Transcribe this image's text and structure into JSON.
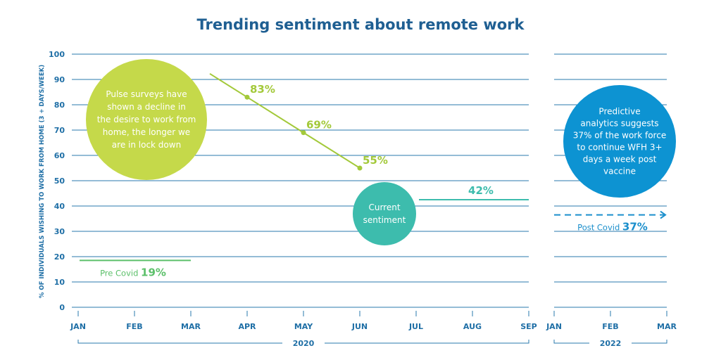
{
  "colors": {
    "axis": "#1f6fa6",
    "grid": "#2a79ad",
    "title": "#1f5f92",
    "lime": "#a3c93a",
    "lime_circle": "#c5d94a",
    "green": "#5cc06a",
    "teal": "#3dbcad",
    "blue": "#1b8fcc",
    "blue_circle": "#0d93d2"
  },
  "chart_data": {
    "type": "line",
    "title": "Trending sentiment about remote work",
    "ylabel": "% OF INDIVIDUALS WISHING TO WORK FROM HOME (3 + DAYS/WEEK)",
    "ylim": [
      0,
      100
    ],
    "yticks": [
      "0",
      "10",
      "20",
      "30",
      "40",
      "50",
      "60",
      "70",
      "80",
      "90",
      "100"
    ],
    "grid": true,
    "panels": [
      {
        "year": "2020",
        "months": [
          "JAN",
          "FEB",
          "MAR",
          "APR",
          "MAY",
          "JUN",
          "JUL",
          "AUG",
          "SEP"
        ]
      },
      {
        "year": "2022",
        "months": [
          "JAN",
          "FEB",
          "MAR"
        ]
      }
    ],
    "series": [
      {
        "points": [
          {
            "x": "2020-04",
            "y": 83,
            "label": "83%"
          },
          {
            "x": "2020-05",
            "y": 69,
            "label": "69%"
          },
          {
            "x": "2020-06",
            "y": 55,
            "label": "55%"
          }
        ]
      }
    ],
    "reference_lines": [
      {
        "label": "Pre Covid",
        "value_label": "19%",
        "y": 18.5,
        "from": "2020-01",
        "to": "2020-03"
      },
      {
        "label": "",
        "value_label": "42%",
        "y": 42.5,
        "from": "2020-07",
        "to": "2020-09"
      },
      {
        "label": "Post Covid",
        "value_label": "37%",
        "y": 36.5,
        "from": "2022-01",
        "to": "2022-03",
        "style": "dashed-arrow"
      }
    ],
    "annotations": [
      {
        "id": "pulse",
        "lines": [
          "Pulse surveys have",
          "shown a decline in",
          "the desire to work from",
          "home, the longer we",
          "are in lock down"
        ]
      },
      {
        "id": "current",
        "lines": [
          "Current",
          "sentiment"
        ]
      },
      {
        "id": "predictive",
        "lines": [
          "Predictive",
          "analytics suggests",
          "37% of the work force",
          "to continue WFH 3+",
          "days a week post",
          "vaccine"
        ]
      }
    ]
  }
}
